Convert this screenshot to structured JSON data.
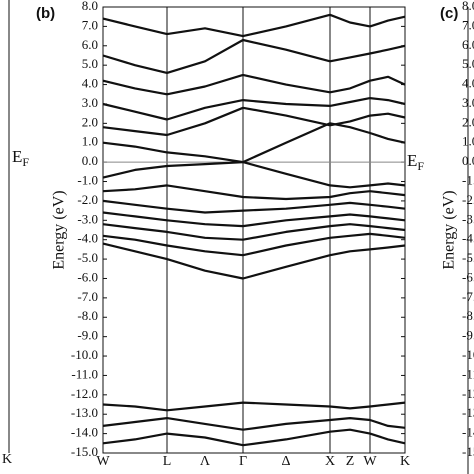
{
  "chart_data": [
    {
      "type": "frame-edge",
      "annotation": "E",
      "annotation_sub": "F",
      "xticks": [
        {
          "value": 1,
          "label": "K"
        }
      ]
    },
    {
      "type": "band",
      "title": "(b)",
      "y_label": "Energy (eV)",
      "annotation": "E",
      "annotation_sub": "F",
      "xlim": [
        0,
        3.02
      ],
      "ylim": [
        -15,
        8
      ],
      "xticks": [
        {
          "value": 0,
          "label": "W"
        },
        {
          "value": 0.64,
          "label": "L"
        },
        {
          "value": 1.02,
          "label": "Λ"
        },
        {
          "value": 1.4,
          "label": "Γ"
        },
        {
          "value": 1.83,
          "label": "Δ"
        },
        {
          "value": 2.27,
          "label": "X"
        },
        {
          "value": 2.47,
          "label": "Z"
        },
        {
          "value": 2.67,
          "label": "W"
        },
        {
          "value": 3.02,
          "label": "K"
        }
      ],
      "yticks": [
        {
          "value": 8,
          "label": "8.0"
        },
        {
          "value": 7,
          "label": "7.0"
        },
        {
          "value": 6,
          "label": "6.0"
        },
        {
          "value": 5,
          "label": "5.0"
        },
        {
          "value": 4,
          "label": "4.0"
        },
        {
          "value": 3,
          "label": "3.0"
        },
        {
          "value": 2,
          "label": "2.0"
        },
        {
          "value": 1,
          "label": "1.0"
        },
        {
          "value": 0,
          "label": "0.0"
        },
        {
          "value": -1,
          "label": "-1.0"
        },
        {
          "value": -2,
          "label": "-2.0"
        },
        {
          "value": -3,
          "label": "-3.0"
        },
        {
          "value": -4,
          "label": "-4.0"
        },
        {
          "value": -5,
          "label": "-5.0"
        },
        {
          "value": -6,
          "label": "-6.0"
        },
        {
          "value": -7,
          "label": "-7.0"
        },
        {
          "value": -8,
          "label": "-8.0"
        },
        {
          "value": -9,
          "label": "-9.0"
        },
        {
          "value": -10,
          "label": "-10.0"
        },
        {
          "value": -11,
          "label": "-11.0"
        },
        {
          "value": -12,
          "label": "-12.0"
        },
        {
          "value": -13,
          "label": "-13.0"
        },
        {
          "value": -14,
          "label": "-14.0"
        },
        {
          "value": -15,
          "label": "-15.0"
        }
      ],
      "vlines": [
        0.64,
        1.4,
        2.27,
        2.67
      ],
      "hlines": [
        0
      ],
      "x": [
        0,
        0.32,
        0.64,
        1.02,
        1.4,
        1.83,
        2.27,
        2.47,
        2.67,
        2.85,
        3.02
      ],
      "series": [
        {
          "color": "#111111",
          "values": [
            -14.5,
            -14.3,
            -14.0,
            -14.2,
            -14.6,
            -14.3,
            -13.9,
            -13.8,
            -14.0,
            -14.3,
            -14.5
          ]
        },
        {
          "color": "#111111",
          "values": [
            -13.6,
            -13.4,
            -13.2,
            -13.5,
            -13.8,
            -13.5,
            -13.3,
            -13.2,
            -13.3,
            -13.6,
            -13.7
          ]
        },
        {
          "color": "#111111",
          "values": [
            -12.5,
            -12.6,
            -12.8,
            -12.6,
            -12.4,
            -12.5,
            -12.6,
            -12.7,
            -12.6,
            -12.5,
            -12.4
          ]
        },
        {
          "color": "#111111",
          "values": [
            -4.2,
            -4.6,
            -5.0,
            -5.6,
            -6.0,
            -5.4,
            -4.8,
            -4.6,
            -4.5,
            -4.4,
            -4.3
          ]
        },
        {
          "color": "#111111",
          "values": [
            -3.8,
            -4.0,
            -4.3,
            -4.6,
            -4.8,
            -4.3,
            -3.9,
            -3.8,
            -3.7,
            -3.8,
            -3.9
          ]
        },
        {
          "color": "#111111",
          "values": [
            -3.2,
            -3.4,
            -3.6,
            -3.9,
            -4.0,
            -3.6,
            -3.3,
            -3.2,
            -3.3,
            -3.4,
            -3.5
          ]
        },
        {
          "color": "#111111",
          "values": [
            -2.6,
            -2.8,
            -3.0,
            -3.2,
            -3.3,
            -3.0,
            -2.8,
            -2.7,
            -2.8,
            -2.9,
            -3.0
          ]
        },
        {
          "color": "#111111",
          "values": [
            -2.0,
            -2.2,
            -2.4,
            -2.6,
            -2.5,
            -2.4,
            -2.2,
            -2.1,
            -2.2,
            -2.3,
            -2.4
          ]
        },
        {
          "color": "#111111",
          "values": [
            -1.5,
            -1.4,
            -1.2,
            -1.5,
            -1.8,
            -1.9,
            -1.8,
            -1.6,
            -1.5,
            -1.6,
            -1.7
          ]
        },
        {
          "color": "#111111",
          "values": [
            -0.8,
            -0.4,
            -0.2,
            -0.1,
            0.0,
            -0.6,
            -1.2,
            -1.3,
            -1.2,
            -1.1,
            -1.2
          ]
        },
        {
          "color": "#111111",
          "values": [
            1.0,
            0.8,
            0.5,
            0.3,
            0.0,
            1.0,
            2.0,
            1.8,
            1.5,
            1.2,
            1.0
          ]
        },
        {
          "color": "#111111",
          "values": [
            1.8,
            1.6,
            1.4,
            2.0,
            2.8,
            2.4,
            1.9,
            2.1,
            2.4,
            2.5,
            2.3
          ]
        },
        {
          "color": "#111111",
          "values": [
            3.0,
            2.6,
            2.2,
            2.8,
            3.2,
            3.0,
            2.9,
            3.1,
            3.3,
            3.2,
            3.0
          ]
        },
        {
          "color": "#111111",
          "values": [
            4.2,
            3.8,
            3.5,
            3.9,
            4.5,
            4.0,
            3.6,
            3.8,
            4.2,
            4.4,
            4.0
          ]
        },
        {
          "color": "#111111",
          "values": [
            5.5,
            5.0,
            4.6,
            5.2,
            6.3,
            5.8,
            5.2,
            5.4,
            5.6,
            5.8,
            6.0
          ]
        },
        {
          "color": "#111111",
          "values": [
            7.4,
            7.0,
            6.6,
            6.9,
            6.5,
            7.0,
            7.6,
            7.2,
            7.0,
            7.3,
            7.5
          ]
        }
      ]
    },
    {
      "type": "frame-edge-right",
      "title": "(c)",
      "y_label": "Energy (eV)"
    }
  ]
}
